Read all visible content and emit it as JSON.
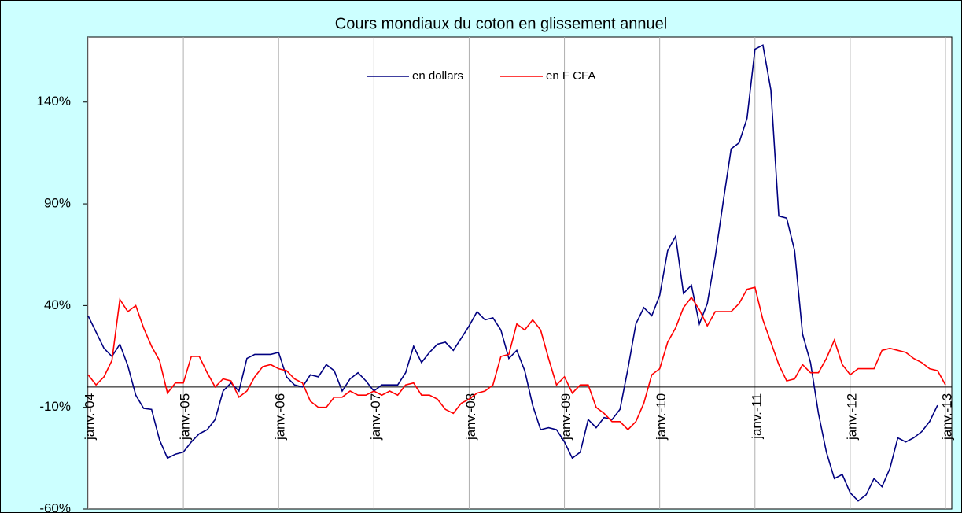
{
  "chart_data": {
    "type": "line",
    "title": "Cours mondiaux du coton en glissement annuel",
    "categories": [
      "janv.-04",
      null,
      null,
      null,
      null,
      null,
      null,
      null,
      null,
      null,
      null,
      null,
      "janv.-05",
      null,
      null,
      null,
      null,
      null,
      null,
      null,
      null,
      null,
      null,
      null,
      "janv.-06",
      null,
      null,
      null,
      null,
      null,
      null,
      null,
      null,
      null,
      null,
      null,
      "janv.-07",
      null,
      null,
      null,
      null,
      null,
      null,
      null,
      null,
      null,
      null,
      null,
      "janv.-08",
      null,
      null,
      null,
      null,
      null,
      null,
      null,
      null,
      null,
      null,
      null,
      "janv.-09",
      null,
      null,
      null,
      null,
      null,
      null,
      null,
      null,
      null,
      null,
      null,
      "janv.-10",
      null,
      null,
      null,
      null,
      null,
      null,
      null,
      null,
      null,
      null,
      null,
      "janv.-11",
      null,
      null,
      null,
      null,
      null,
      null,
      null,
      null,
      null,
      null,
      null,
      "janv.-12",
      null,
      null,
      null,
      null,
      null,
      null,
      null,
      null,
      null,
      null,
      null,
      "janv.-13"
    ],
    "series": [
      {
        "name": "en dollars",
        "color": "#000080",
        "values": [
          35,
          27,
          19,
          15,
          21,
          10.5,
          -4,
          -10.5,
          -11,
          -26,
          -35,
          -33,
          -32,
          -27,
          -23,
          -21,
          -16,
          -2,
          2,
          -2,
          14,
          16,
          16,
          16,
          17,
          5,
          1,
          0,
          6,
          5,
          11,
          8,
          -2,
          4,
          7,
          3,
          -2,
          1,
          1,
          1,
          7,
          20,
          12,
          17,
          21,
          22,
          18,
          24,
          30,
          37,
          33,
          34,
          28,
          14,
          18,
          8,
          -9,
          -21,
          -20,
          -21,
          -27,
          -35,
          -32,
          -16,
          -20,
          -15,
          -16,
          -11,
          9,
          31,
          39,
          35,
          45,
          67,
          74,
          46,
          50,
          31,
          41,
          64,
          91,
          117,
          120,
          132,
          166,
          168,
          146,
          84,
          83,
          67,
          26,
          12,
          -13,
          -32,
          -45,
          -43,
          -52,
          -56,
          -53,
          -45,
          -49,
          -40,
          -25,
          -27,
          -25,
          -22,
          -17,
          -9,
          null
        ]
      },
      {
        "name": "en F CFA",
        "color": "#ff0000",
        "values": [
          6,
          1,
          5,
          13,
          43,
          37,
          40,
          29,
          20,
          13,
          -3,
          2,
          2,
          15,
          15,
          7,
          0,
          4,
          3,
          -5,
          -2,
          5,
          10,
          11,
          9,
          8,
          4,
          2,
          -7,
          -10,
          -10,
          -5,
          -5,
          -2,
          -4,
          -4,
          -2,
          -4,
          -2,
          -4,
          1,
          2,
          -4,
          -4,
          -6,
          -11,
          -13,
          -8,
          -6,
          -3,
          -2,
          1,
          15,
          16,
          31,
          28,
          33,
          28,
          14,
          1,
          5,
          -3,
          1,
          1,
          -10,
          -13,
          -17,
          -17,
          -21,
          -17,
          -8,
          6,
          9,
          22,
          29,
          39,
          44,
          38,
          30,
          37,
          37,
          37,
          41,
          48,
          49,
          33,
          22,
          11,
          3,
          4,
          11,
          7,
          7,
          14,
          23,
          11,
          6,
          9,
          9,
          9,
          18,
          19,
          18,
          17,
          14,
          12,
          9,
          8,
          1
        ]
      }
    ],
    "ylim": [
      -60,
      172
    ],
    "yticks": [
      {
        "value": -60,
        "label": "-60%"
      },
      {
        "value": -10,
        "label": "-10%"
      },
      {
        "value": 40,
        "label": "40%"
      },
      {
        "value": 90,
        "label": "90%"
      },
      {
        "value": 140,
        "label": "140%"
      }
    ],
    "grid": true,
    "legend": "top"
  }
}
